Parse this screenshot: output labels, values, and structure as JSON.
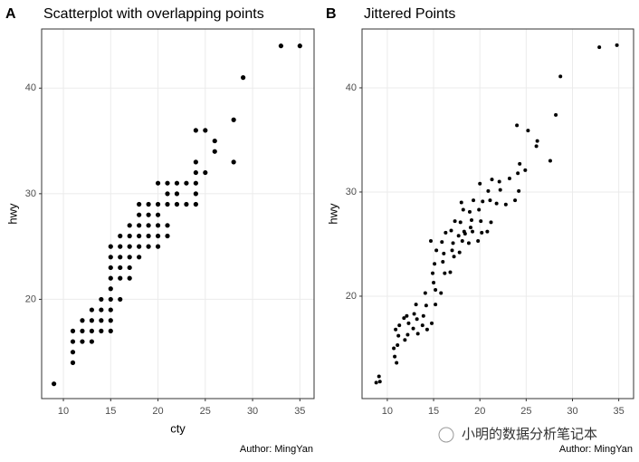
{
  "chart_data": [
    {
      "type": "scatter",
      "tag": "A",
      "title": "Scatterplot with overlapping points",
      "x_label": "cty",
      "y_label": "hwy",
      "caption": "Author: MingYan",
      "color": "#000000",
      "xlim": [
        7.7,
        36.5
      ],
      "ylim": [
        10.6,
        45.6
      ],
      "xticks": [
        10,
        15,
        20,
        25,
        30,
        35
      ],
      "yticks": [
        20,
        30,
        40
      ],
      "grid": true,
      "x": [
        9,
        11,
        11,
        11,
        11,
        12,
        12,
        12,
        13,
        13,
        13,
        13,
        14,
        14,
        14,
        14,
        15,
        15,
        15,
        15,
        15,
        15,
        15,
        15,
        15,
        16,
        16,
        16,
        16,
        16,
        16,
        17,
        17,
        17,
        17,
        17,
        17,
        18,
        18,
        18,
        18,
        18,
        18,
        19,
        19,
        19,
        19,
        19,
        20,
        20,
        20,
        20,
        20,
        20,
        21,
        21,
        21,
        21,
        21,
        22,
        22,
        22,
        23,
        23,
        24,
        24,
        24,
        24,
        24,
        24,
        25,
        25,
        26,
        26,
        28,
        28,
        29,
        33,
        35
      ],
      "values": [
        12,
        14,
        15,
        16,
        17,
        16,
        17,
        18,
        16,
        17,
        18,
        19,
        17,
        18,
        19,
        20,
        17,
        18,
        19,
        20,
        21,
        22,
        23,
        24,
        25,
        20,
        22,
        23,
        24,
        25,
        26,
        22,
        23,
        24,
        25,
        26,
        27,
        24,
        25,
        26,
        27,
        28,
        29,
        25,
        26,
        27,
        28,
        29,
        25,
        26,
        27,
        28,
        29,
        31,
        26,
        27,
        29,
        30,
        31,
        29,
        30,
        31,
        29,
        31,
        29,
        30,
        31,
        32,
        33,
        36,
        32,
        36,
        34,
        35,
        33,
        37,
        41,
        44,
        44
      ]
    },
    {
      "type": "scatter",
      "tag": "B",
      "title": "Jittered Points",
      "y_label": "hwy",
      "caption": "Author: MingYan",
      "watermark": "小明的数据分析笔记本",
      "color": "#000000",
      "xlim": [
        7.27,
        36.6
      ],
      "ylim": [
        10.17,
        45.65
      ],
      "xticks": [
        10,
        15,
        20,
        25,
        30,
        35
      ],
      "yticks": [
        20,
        30,
        40
      ],
      "grid": true,
      "x": [
        8.8,
        9.1,
        9.2,
        10.8,
        11.1,
        10.9,
        11.3,
        10.7,
        11.2,
        11.0,
        11.8,
        12.2,
        12.1,
        11.9,
        12.3,
        12.8,
        13.2,
        13.1,
        12.9,
        13.3,
        13.8,
        14.2,
        14.1,
        13.9,
        14.3,
        14.8,
        15.2,
        14.9,
        15.1,
        15.3,
        14.7,
        15.0,
        15.2,
        15.8,
        16.2,
        16.1,
        15.9,
        16.3,
        16.0,
        16.8,
        17.2,
        17.1,
        16.9,
        17.3,
        17.0,
        17.8,
        18.1,
        18.3,
        17.9,
        18.2,
        18.0,
        17.7,
        18.4,
        18.8,
        19.2,
        19.1,
        18.9,
        19.3,
        19.0,
        19.8,
        20.2,
        20.1,
        19.9,
        20.3,
        20.0,
        20.8,
        21.2,
        21.1,
        20.9,
        21.3,
        21.8,
        22.2,
        22.1,
        22.8,
        23.2,
        23.8,
        24.2,
        24.1,
        24.3,
        24.0,
        25.2,
        24.9,
        26.1,
        26.2,
        27.6,
        28.2,
        28.7,
        32.9,
        34.8
      ],
      "values": [
        11.7,
        12.3,
        11.8,
        14.2,
        15.3,
        16.8,
        17.2,
        15.0,
        16.2,
        13.6,
        17.9,
        16.3,
        18.1,
        15.8,
        17.4,
        16.9,
        17.8,
        19.2,
        18.3,
        16.4,
        17.2,
        19.1,
        20.3,
        18.1,
        16.8,
        17.4,
        20.6,
        22.2,
        23.1,
        24.4,
        25.3,
        21.3,
        19.2,
        20.3,
        22.2,
        24.1,
        25.2,
        26.1,
        23.3,
        22.3,
        23.8,
        25.1,
        26.3,
        27.2,
        24.4,
        24.2,
        25.3,
        26.2,
        27.1,
        28.3,
        29.0,
        25.8,
        26.0,
        25.1,
        26.2,
        27.3,
        28.1,
        29.2,
        26.6,
        25.3,
        26.1,
        27.2,
        28.3,
        29.1,
        30.8,
        26.2,
        27.1,
        29.2,
        30.1,
        31.2,
        28.9,
        30.2,
        31.0,
        28.8,
        31.3,
        29.2,
        30.1,
        31.8,
        32.7,
        36.4,
        35.9,
        32.1,
        34.4,
        34.9,
        33.0,
        37.4,
        41.1,
        43.9,
        44.1
      ]
    }
  ]
}
